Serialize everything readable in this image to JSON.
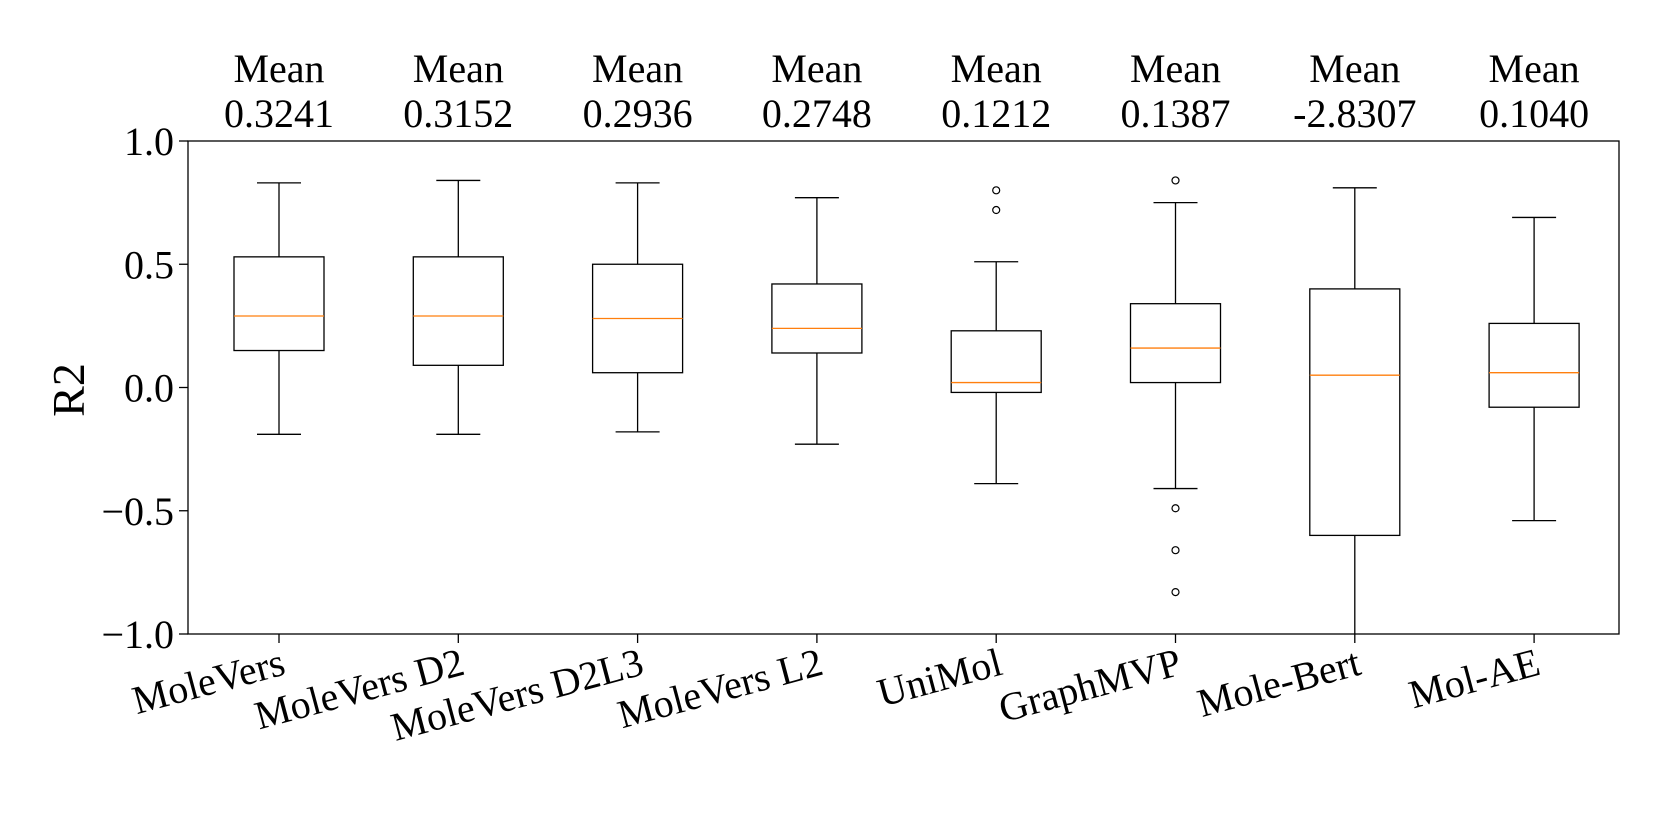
{
  "chart_data": {
    "type": "box",
    "title": "",
    "xlabel": "",
    "ylabel": "R2",
    "ylim": [
      -1.0,
      1.0
    ],
    "yticks": [
      1.0,
      0.5,
      0.0,
      -0.5,
      -1.0
    ],
    "ytick_labels": [
      "1.0",
      "0.5",
      "0.0",
      "−0.5",
      "−1.0"
    ],
    "grid": false,
    "mean_prefix": "Mean",
    "median_color": "#ff7f0e",
    "box_color": "#000000",
    "categories": [
      "MoleVers",
      "MoleVers D2",
      "MoleVers D2L3",
      "MoleVers L2",
      "UniMol",
      "GraphMVP",
      "Mole-Bert",
      "Mol-AE"
    ],
    "boxes": [
      {
        "name": "MoleVers",
        "mean_label": "0.3241",
        "whisker_low": -0.19,
        "q1": 0.15,
        "median": 0.29,
        "q3": 0.53,
        "whisker_high": 0.83,
        "outliers": []
      },
      {
        "name": "MoleVers D2",
        "mean_label": "0.3152",
        "whisker_low": -0.19,
        "q1": 0.09,
        "median": 0.29,
        "q3": 0.53,
        "whisker_high": 0.84,
        "outliers": []
      },
      {
        "name": "MoleVers D2L3",
        "mean_label": "0.2936",
        "whisker_low": -0.18,
        "q1": 0.06,
        "median": 0.28,
        "q3": 0.5,
        "whisker_high": 0.83,
        "outliers": []
      },
      {
        "name": "MoleVers L2",
        "mean_label": "0.2748",
        "whisker_low": -0.23,
        "q1": 0.14,
        "median": 0.24,
        "q3": 0.42,
        "whisker_high": 0.77,
        "outliers": []
      },
      {
        "name": "UniMol",
        "mean_label": "0.1212",
        "whisker_low": -0.39,
        "q1": -0.02,
        "median": 0.02,
        "q3": 0.23,
        "whisker_high": 0.51,
        "outliers": [
          0.72,
          0.8
        ]
      },
      {
        "name": "GraphMVP",
        "mean_label": "0.1387",
        "whisker_low": -0.41,
        "q1": 0.02,
        "median": 0.16,
        "q3": 0.34,
        "whisker_high": 0.75,
        "outliers": [
          0.84,
          -0.49,
          -0.66,
          -0.83
        ]
      },
      {
        "name": "Mole-Bert",
        "mean_label": "-2.8307",
        "whisker_low": -1.0,
        "q1": -0.6,
        "median": 0.05,
        "q3": 0.4,
        "whisker_high": 0.81,
        "outliers": []
      },
      {
        "name": "Mol-AE",
        "mean_label": "0.1040",
        "whisker_low": -0.54,
        "q1": -0.08,
        "median": 0.06,
        "q3": 0.26,
        "whisker_high": 0.69,
        "outliers": []
      }
    ]
  }
}
